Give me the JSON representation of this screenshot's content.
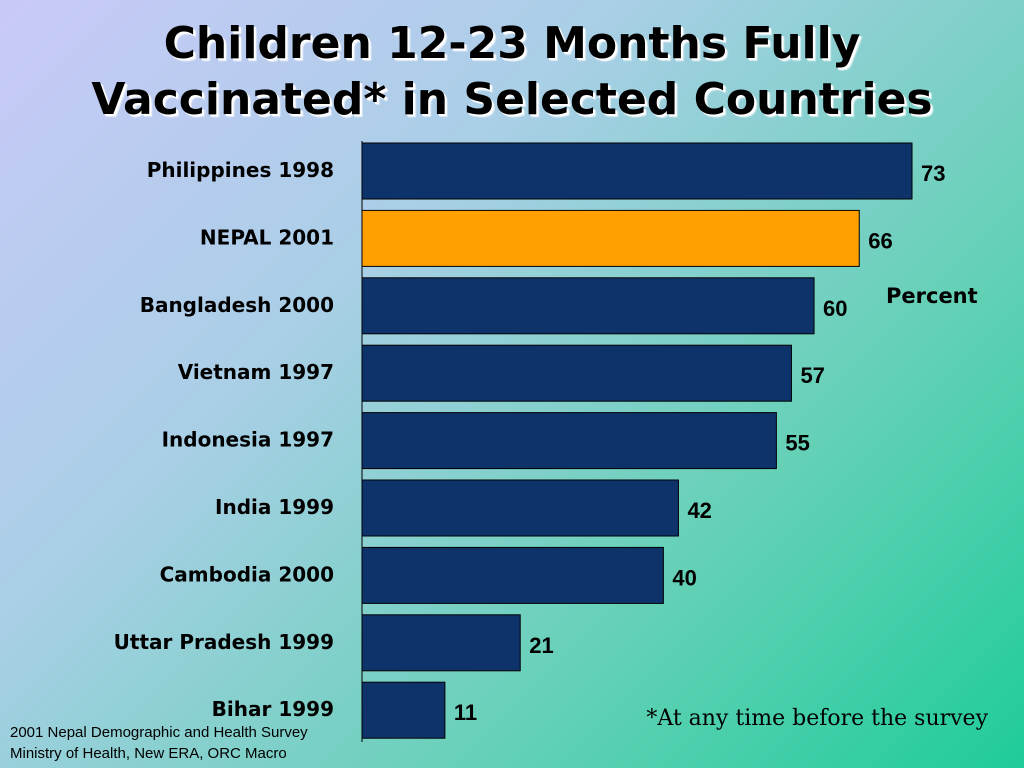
{
  "chart_data": {
    "type": "bar",
    "orientation": "horizontal",
    "title_lines": [
      "Children 12-23 Months Fully",
      "Vaccinated* in Selected Countries"
    ],
    "categories": [
      "Philippines 1998",
      "NEPAL 2001",
      "Bangladesh 2000",
      "Vietnam 1997",
      "Indonesia 1997",
      "India 1999",
      "Cambodia 2000",
      "Uttar Pradesh 1999",
      "Bihar 1999"
    ],
    "values": [
      73,
      66,
      60,
      57,
      55,
      42,
      40,
      21,
      11
    ],
    "unit_label": "Percent",
    "xlim": [
      0,
      73
    ],
    "highlight_category": "NEPAL 2001",
    "colors": {
      "bar": "#0e336b",
      "highlight": "#ff9f00",
      "bar_edge": "#000000"
    },
    "grid": false
  },
  "footnote": "*At any time before the survey",
  "source_lines": [
    "2001 Nepal Demographic and Health Survey",
    "Ministry of Health, New ERA, ORC Macro"
  ]
}
